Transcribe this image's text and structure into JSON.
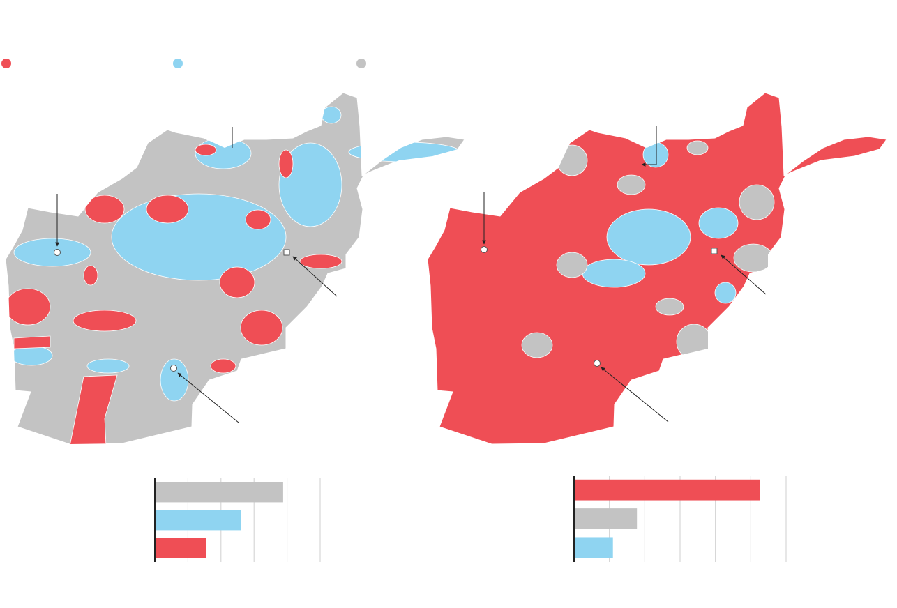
{
  "legend": [
    {
      "color": "#ef4e55"
    },
    {
      "color": "#8fd4f1"
    },
    {
      "color": "#c3c3c3"
    }
  ],
  "chart_data": [
    {
      "type": "bar",
      "orientation": "horizontal",
      "categories": [
        null,
        null,
        null
      ],
      "values": [
        194,
        130,
        78
      ],
      "colors": [
        "#c3c3c3",
        "#8fd4f1",
        "#ef4e55"
      ],
      "xlim": [
        0,
        250
      ],
      "xticks": [
        0,
        50,
        100,
        150,
        200,
        250
      ],
      "grid": true
    },
    {
      "type": "bar",
      "orientation": "horizontal",
      "categories": [
        null,
        null,
        null
      ],
      "values": [
        263,
        89,
        55
      ],
      "colors": [
        "#ef4e55",
        "#c3c3c3",
        "#8fd4f1"
      ],
      "xlim": [
        0,
        300
      ],
      "xticks": [
        0,
        50,
        100,
        150,
        200,
        250,
        300
      ],
      "grid": true
    }
  ]
}
